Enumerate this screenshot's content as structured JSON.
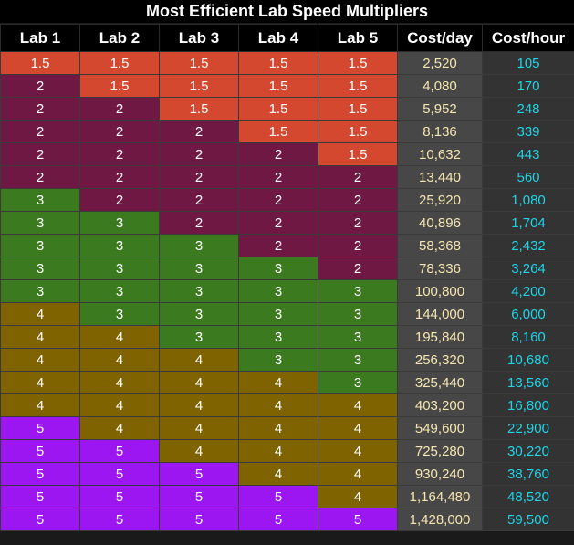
{
  "title": "Most Efficient Lab Speed Multipliers",
  "columns": [
    "Lab 1",
    "Lab 2",
    "Lab 3",
    "Lab 4",
    "Lab 5",
    "Cost/day",
    "Cost/hour"
  ],
  "level_colors": {
    "1.5": "#d3482e",
    "2": "#6f1844",
    "3": "#3b7a1f",
    "4": "#7f6300",
    "5": "#9b16f0"
  },
  "cost_day_color": "#f5e6b0",
  "cost_hour_color": "#20d4e6",
  "rows": [
    {
      "labs": [
        "1.5",
        "1.5",
        "1.5",
        "1.5",
        "1.5"
      ],
      "cost_day": "2,520",
      "cost_hour": "105"
    },
    {
      "labs": [
        "2",
        "1.5",
        "1.5",
        "1.5",
        "1.5"
      ],
      "cost_day": "4,080",
      "cost_hour": "170"
    },
    {
      "labs": [
        "2",
        "2",
        "1.5",
        "1.5",
        "1.5"
      ],
      "cost_day": "5,952",
      "cost_hour": "248"
    },
    {
      "labs": [
        "2",
        "2",
        "2",
        "1.5",
        "1.5"
      ],
      "cost_day": "8,136",
      "cost_hour": "339"
    },
    {
      "labs": [
        "2",
        "2",
        "2",
        "2",
        "1.5"
      ],
      "cost_day": "10,632",
      "cost_hour": "443"
    },
    {
      "labs": [
        "2",
        "2",
        "2",
        "2",
        "2"
      ],
      "cost_day": "13,440",
      "cost_hour": "560"
    },
    {
      "labs": [
        "3",
        "2",
        "2",
        "2",
        "2"
      ],
      "cost_day": "25,920",
      "cost_hour": "1,080"
    },
    {
      "labs": [
        "3",
        "3",
        "2",
        "2",
        "2"
      ],
      "cost_day": "40,896",
      "cost_hour": "1,704"
    },
    {
      "labs": [
        "3",
        "3",
        "3",
        "2",
        "2"
      ],
      "cost_day": "58,368",
      "cost_hour": "2,432"
    },
    {
      "labs": [
        "3",
        "3",
        "3",
        "3",
        "2"
      ],
      "cost_day": "78,336",
      "cost_hour": "3,264"
    },
    {
      "labs": [
        "3",
        "3",
        "3",
        "3",
        "3"
      ],
      "cost_day": "100,800",
      "cost_hour": "4,200"
    },
    {
      "labs": [
        "4",
        "3",
        "3",
        "3",
        "3"
      ],
      "cost_day": "144,000",
      "cost_hour": "6,000"
    },
    {
      "labs": [
        "4",
        "4",
        "3",
        "3",
        "3"
      ],
      "cost_day": "195,840",
      "cost_hour": "8,160"
    },
    {
      "labs": [
        "4",
        "4",
        "4",
        "3",
        "3"
      ],
      "cost_day": "256,320",
      "cost_hour": "10,680"
    },
    {
      "labs": [
        "4",
        "4",
        "4",
        "4",
        "3"
      ],
      "cost_day": "325,440",
      "cost_hour": "13,560"
    },
    {
      "labs": [
        "4",
        "4",
        "4",
        "4",
        "4"
      ],
      "cost_day": "403,200",
      "cost_hour": "16,800"
    },
    {
      "labs": [
        "5",
        "4",
        "4",
        "4",
        "4"
      ],
      "cost_day": "549,600",
      "cost_hour": "22,900"
    },
    {
      "labs": [
        "5",
        "5",
        "4",
        "4",
        "4"
      ],
      "cost_day": "725,280",
      "cost_hour": "30,220"
    },
    {
      "labs": [
        "5",
        "5",
        "5",
        "4",
        "4"
      ],
      "cost_day": "930,240",
      "cost_hour": "38,760"
    },
    {
      "labs": [
        "5",
        "5",
        "5",
        "5",
        "4"
      ],
      "cost_day": "1,164,480",
      "cost_hour": "48,520"
    },
    {
      "labs": [
        "5",
        "5",
        "5",
        "5",
        "5"
      ],
      "cost_day": "1,428,000",
      "cost_hour": "59,500"
    }
  ]
}
